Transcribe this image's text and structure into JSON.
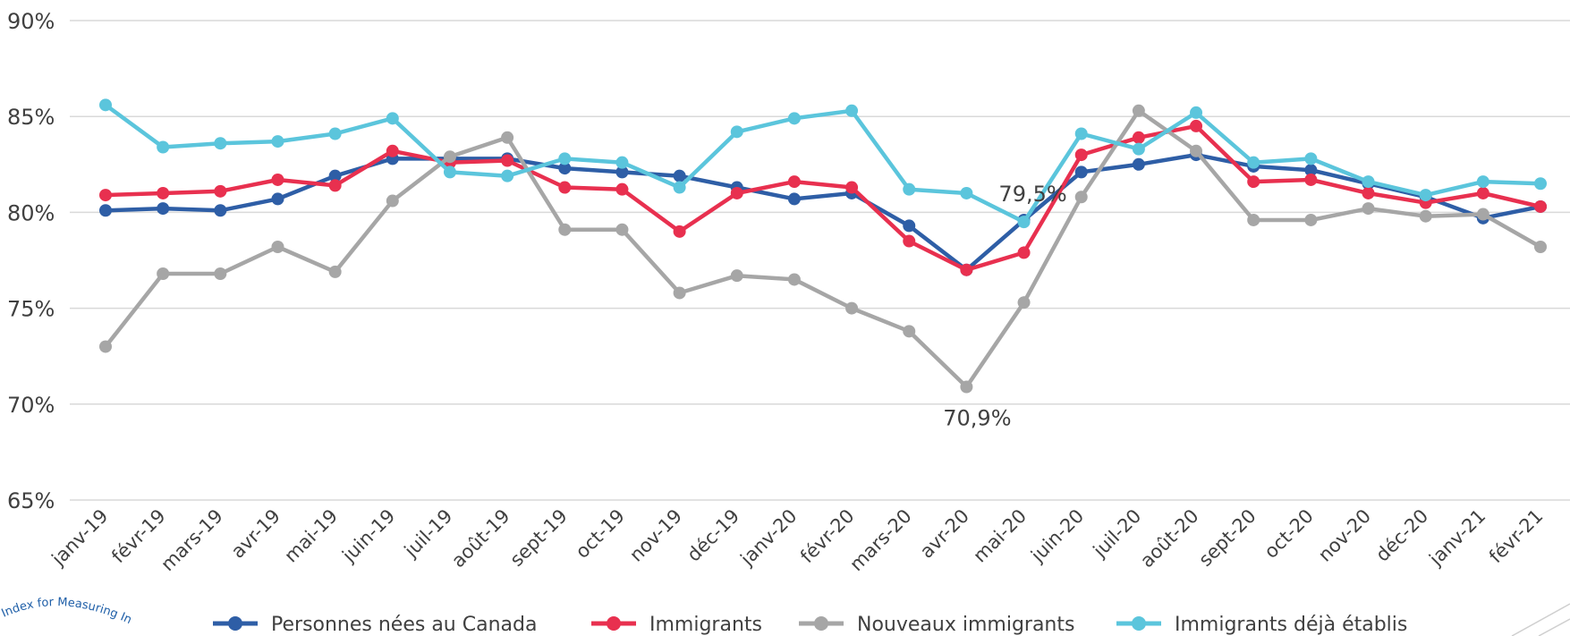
{
  "chart_data": {
    "type": "line",
    "title": "",
    "xlabel": "",
    "ylabel": "",
    "ylim": [
      65,
      90
    ],
    "yticks": [
      "65%",
      "70%",
      "75%",
      "80%",
      "85%",
      "90%"
    ],
    "grid": "horizontal",
    "legend_position": "bottom",
    "categories": [
      "janv-19",
      "févr-19",
      "mars-19",
      "avr-19",
      "mai-19",
      "juin-19",
      "juil-19",
      "août-19",
      "sept-19",
      "oct-19",
      "nov-19",
      "déc-19",
      "janv-20",
      "févr-20",
      "mars-20",
      "avr-20",
      "mai-20",
      "juin-20",
      "juil-20",
      "août-20",
      "sept-20",
      "oct-20",
      "nov-20",
      "déc-20",
      "janv-21",
      "févr-21"
    ],
    "series": [
      {
        "name": "Personnes nées au Canada",
        "color": "#2e5ea6",
        "values": [
          80.1,
          80.2,
          80.1,
          80.7,
          81.9,
          82.8,
          82.8,
          82.8,
          82.3,
          82.1,
          81.9,
          81.3,
          80.7,
          81.0,
          79.3,
          77.0,
          79.6,
          82.1,
          82.5,
          83.0,
          82.4,
          82.2,
          81.5,
          80.8,
          79.7,
          80.3
        ]
      },
      {
        "name": "Immigrants",
        "color": "#e8304f",
        "values": [
          80.9,
          81.0,
          81.1,
          81.7,
          81.4,
          83.2,
          82.6,
          82.7,
          81.3,
          81.2,
          79.0,
          81.0,
          81.6,
          81.3,
          78.5,
          77.0,
          77.9,
          83.0,
          83.9,
          84.5,
          81.6,
          81.7,
          81.0,
          80.5,
          81.0,
          80.3
        ]
      },
      {
        "name": "Nouveaux immigrants",
        "color": "#a6a6a6",
        "values": [
          73.0,
          76.8,
          76.8,
          78.2,
          76.9,
          80.6,
          82.9,
          83.9,
          79.1,
          79.1,
          75.8,
          76.7,
          76.5,
          75.0,
          73.8,
          70.9,
          75.3,
          80.8,
          85.3,
          83.2,
          79.6,
          79.6,
          80.2,
          79.8,
          79.9,
          78.2
        ]
      },
      {
        "name": "Immigrants déjà établis",
        "color": "#5bc5dc",
        "values": [
          85.6,
          83.4,
          83.6,
          83.7,
          84.1,
          84.9,
          82.1,
          81.9,
          82.8,
          82.6,
          81.3,
          84.2,
          84.9,
          85.3,
          81.2,
          81.0,
          79.5,
          84.1,
          83.3,
          85.2,
          82.6,
          82.8,
          81.6,
          80.9,
          81.6,
          81.5
        ]
      }
    ],
    "annotations": [
      {
        "text": "79,5%",
        "series": "Immigrants déjà établis",
        "category": "mai-20"
      },
      {
        "text": "70,9%",
        "series": "Nouveaux immigrants",
        "category": "avr-20"
      }
    ]
  },
  "logo": {
    "text": "Index for Measuring In"
  }
}
